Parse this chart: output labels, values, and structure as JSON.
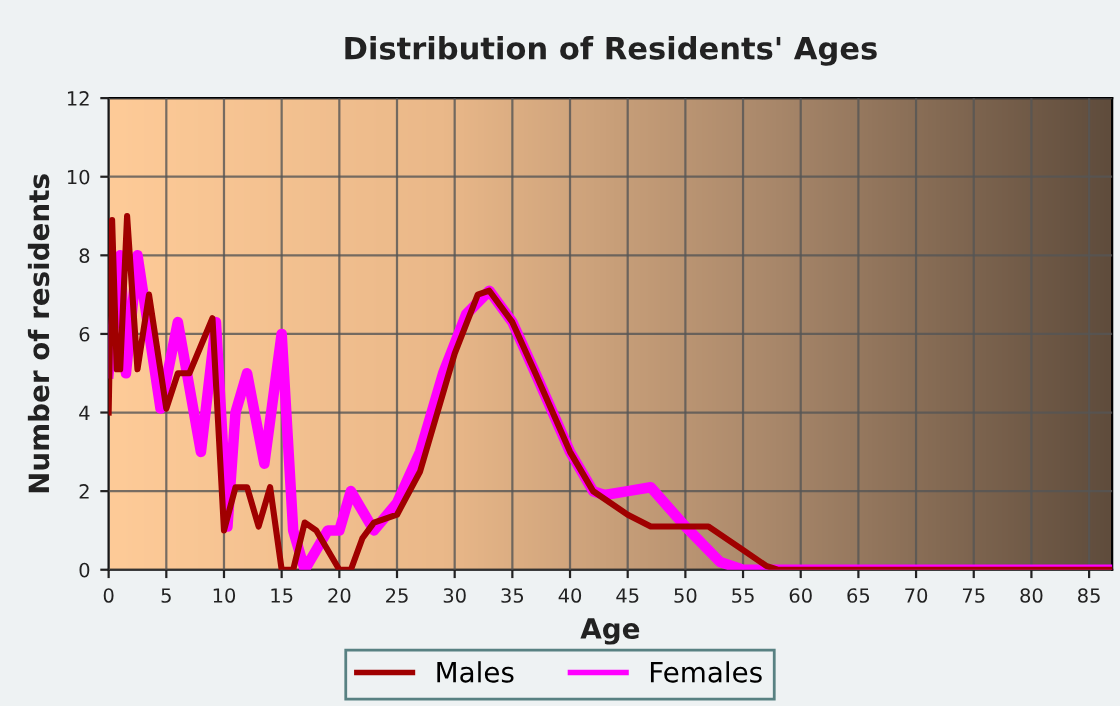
{
  "chart_data": {
    "type": "line",
    "title": "Distribution of Residents' Ages",
    "xlabel": "Age",
    "ylabel": "Number of residents",
    "xlim": [
      0,
      87
    ],
    "xticks": [
      0,
      5,
      10,
      15,
      20,
      25,
      30,
      35,
      40,
      45,
      50,
      55,
      60,
      65,
      70,
      75,
      80,
      85
    ],
    "ylim": [
      0,
      12
    ],
    "yticks": [
      0,
      2,
      4,
      6,
      8,
      10,
      12
    ],
    "grid": true,
    "legend": "bottom",
    "series": [
      {
        "name": "Males",
        "color": "#a00000",
        "x": [
          0,
          0.3,
          0.7,
          1,
          1.6,
          2.5,
          3.5,
          5,
          6,
          7,
          9,
          10,
          11,
          12,
          13,
          14,
          15,
          16,
          17,
          18,
          20,
          21,
          22,
          23,
          25,
          27,
          30,
          32,
          33,
          35,
          37,
          40,
          42,
          45,
          47,
          50,
          52,
          55,
          57,
          58,
          87
        ],
        "values": [
          4,
          8.9,
          5.1,
          5.1,
          9,
          5.1,
          7,
          4.1,
          5,
          5,
          6.4,
          1,
          2.1,
          2.1,
          1.1,
          2.1,
          0,
          0,
          1.2,
          1,
          0,
          0,
          0.8,
          1.2,
          1.4,
          2.5,
          5.5,
          7,
          7.1,
          6.3,
          5,
          3,
          2,
          1.4,
          1.1,
          1.1,
          1.1,
          0.5,
          0.1,
          0,
          0
        ]
      },
      {
        "name": "Females",
        "color": "#ff00ff",
        "x": [
          0,
          1,
          1.5,
          2.5,
          4.5,
          6,
          8,
          9.3,
          10.3,
          11,
          12,
          13.5,
          15,
          16,
          17,
          19,
          20,
          21,
          23,
          25,
          27,
          29,
          31,
          33,
          35,
          37,
          40,
          42,
          43,
          45,
          47,
          50,
          53,
          55,
          87
        ],
        "values": [
          5,
          8,
          5,
          8,
          4.1,
          6.3,
          3,
          6.3,
          1.1,
          4,
          5,
          2.7,
          6,
          1,
          0,
          1,
          1,
          2,
          1,
          1.7,
          3,
          5,
          6.5,
          7.1,
          6.3,
          5,
          3,
          2,
          1.9,
          2,
          2.1,
          1.1,
          0.2,
          0,
          0
        ]
      }
    ]
  }
}
